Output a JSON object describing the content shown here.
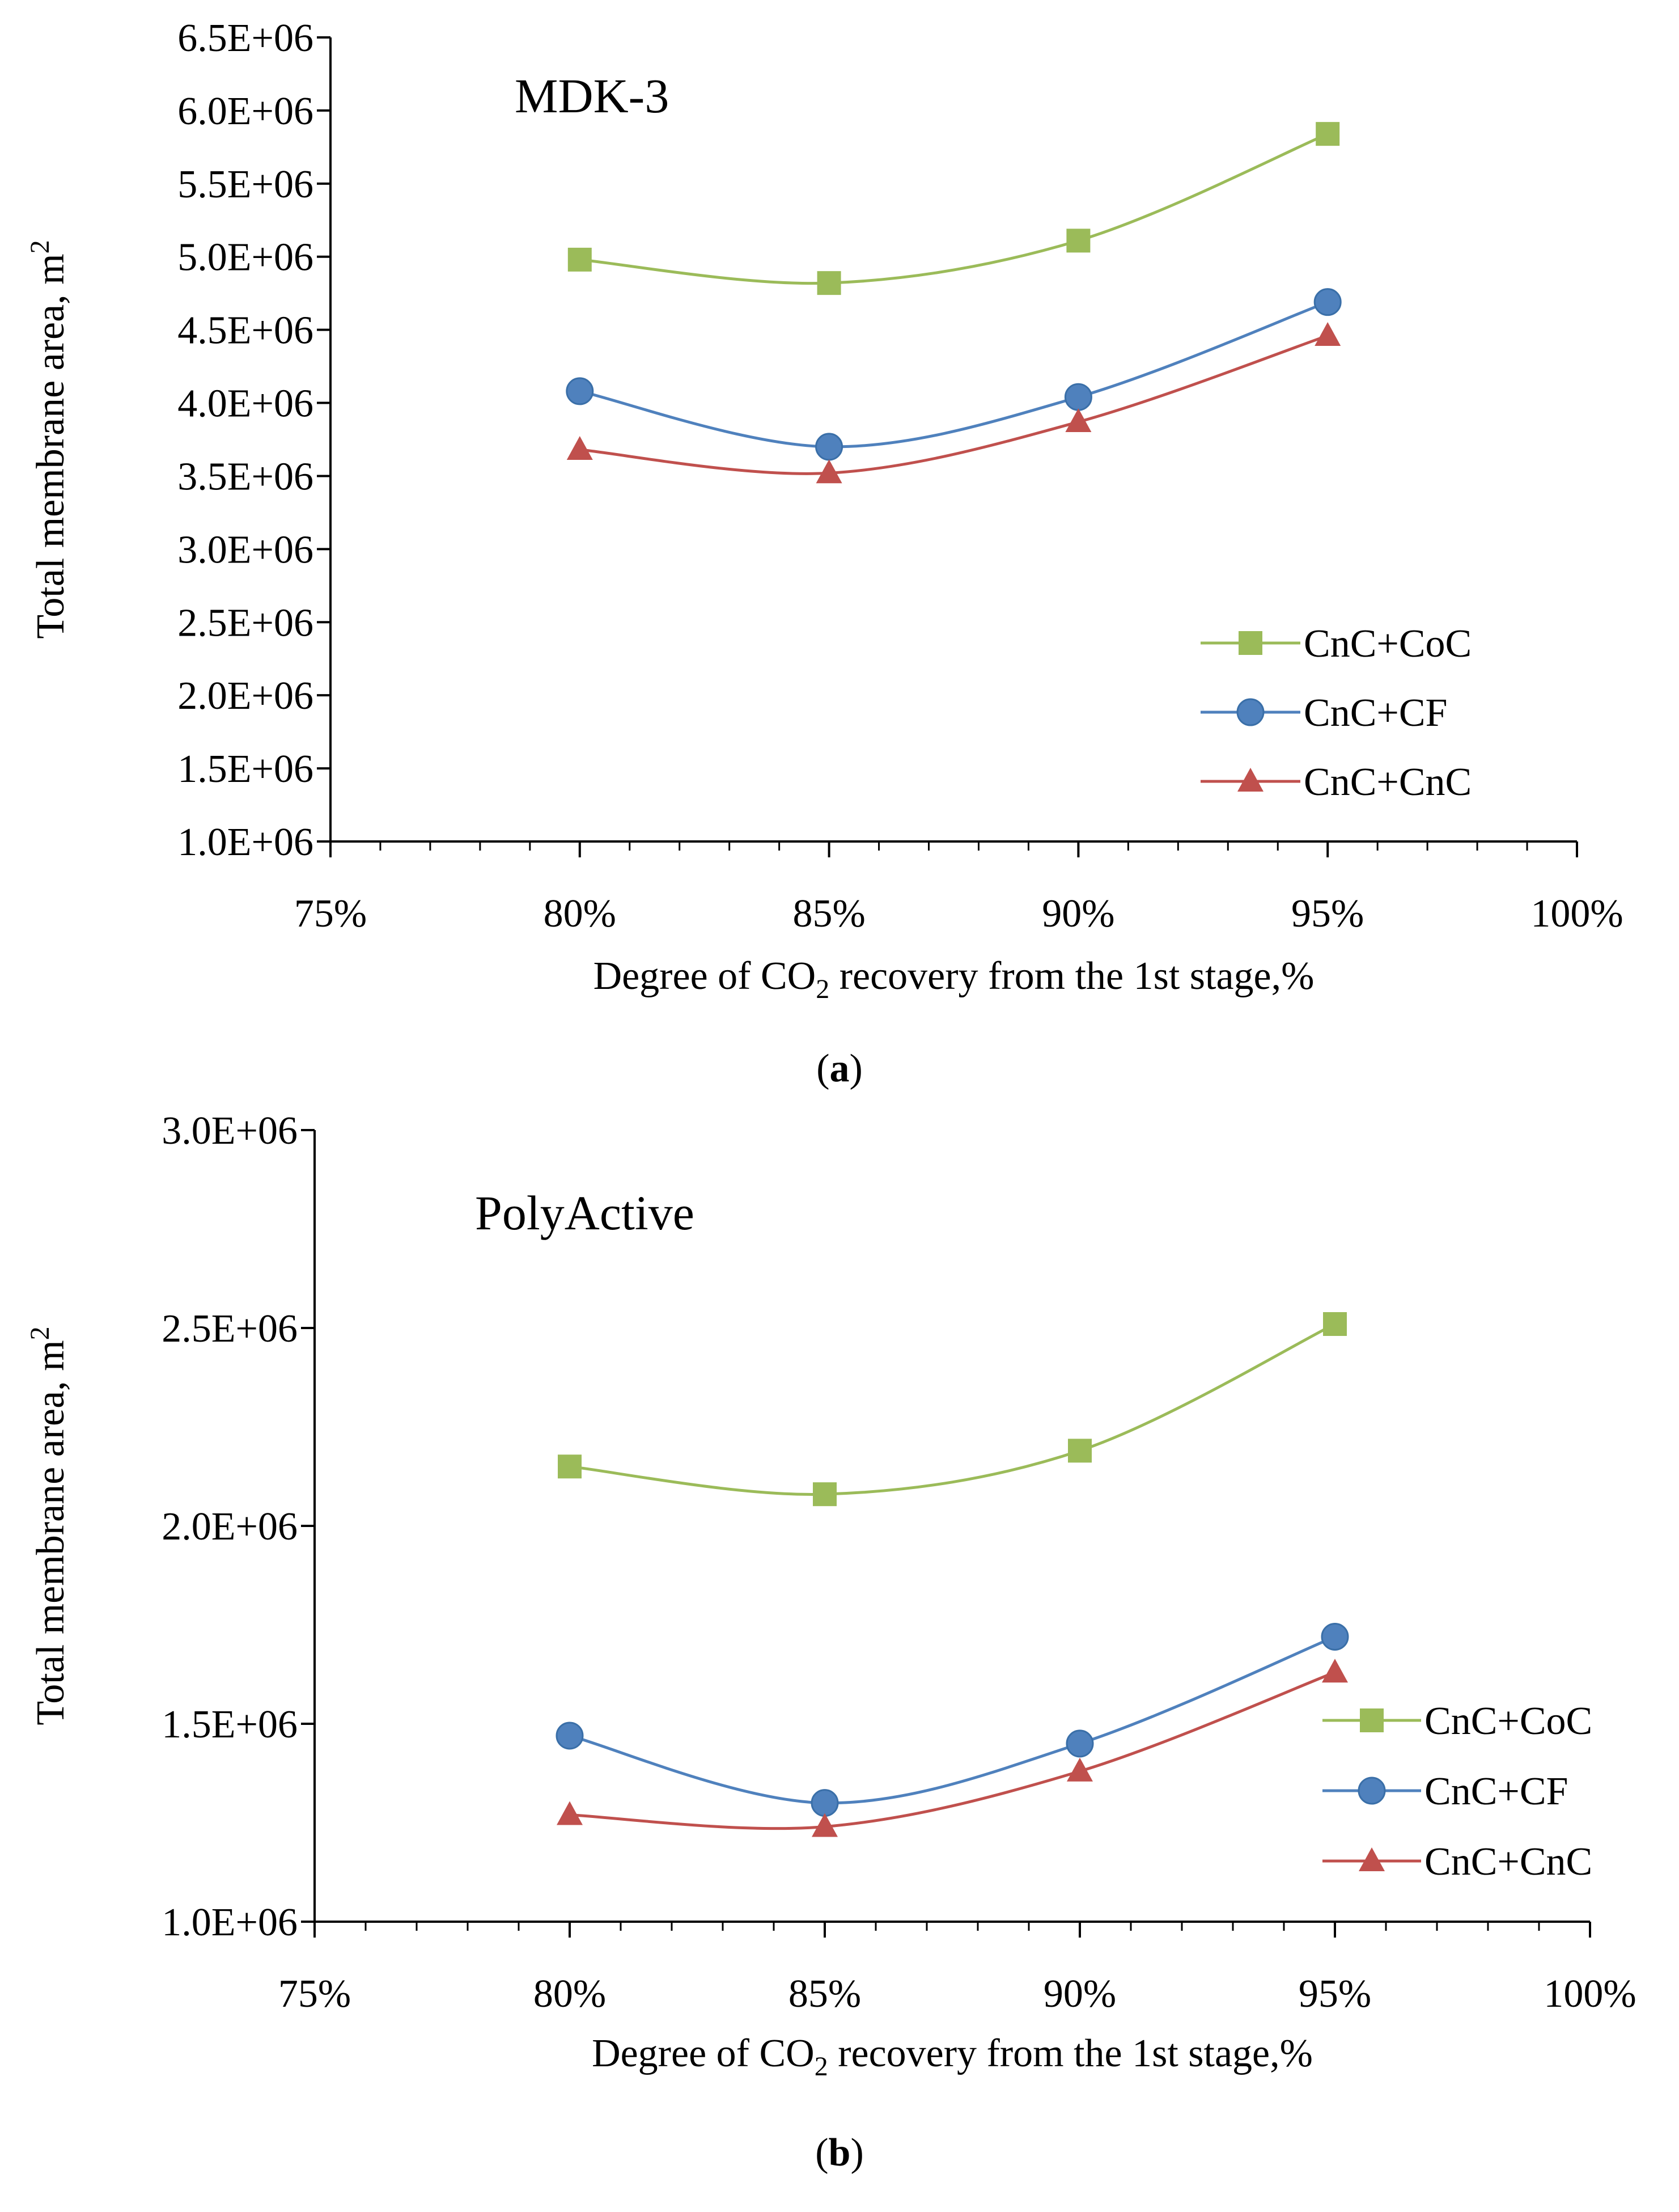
{
  "colors": {
    "CnC+CoC": "#9BBB59",
    "CnC+CF": "#4F81BD",
    "CnC+CnC": "#C0504D",
    "axis": "#000000"
  },
  "chart_data": [
    {
      "type": "line",
      "panel": "a",
      "title": "MDK-3",
      "caption_open": "(",
      "caption_letter": "a",
      "caption_close": ")",
      "xlabel_pre": "Degree of CO",
      "xlabel_sub": "2",
      "xlabel_post": "  recovery from the 1st stage,%",
      "ylabel_pre": "Total membrane area, m",
      "ylabel_sup": "2",
      "xlim": [
        0.75,
        1.0
      ],
      "ylim": [
        1000000,
        6500000
      ],
      "xticks": [
        0.75,
        0.8,
        0.85,
        0.9,
        0.95,
        1.0
      ],
      "xtick_labels": [
        "75%",
        "80%",
        "85%",
        "90%",
        "95%",
        "100%"
      ],
      "yticks": [
        1000000,
        1500000,
        2000000,
        2500000,
        3000000,
        3500000,
        4000000,
        4500000,
        5000000,
        5500000,
        6000000,
        6500000
      ],
      "ytick_labels": [
        "1.0E+06",
        "1.5E+06",
        "2.0E+06",
        "2.5E+06",
        "3.0E+06",
        "3.5E+06",
        "4.0E+06",
        "4.5E+06",
        "5.0E+06",
        "5.5E+06",
        "6.0E+06",
        "6.5E+06"
      ],
      "x": [
        0.8,
        0.85,
        0.9,
        0.95
      ],
      "series": [
        {
          "name": "CnC+CoC",
          "marker": "square",
          "values": [
            4980000,
            4820000,
            5110000,
            5840000
          ]
        },
        {
          "name": "CnC+CF",
          "marker": "circle",
          "values": [
            4080000,
            3700000,
            4040000,
            4690000
          ]
        },
        {
          "name": "CnC+CnC",
          "marker": "triangle",
          "values": [
            3680000,
            3520000,
            3870000,
            4460000
          ]
        }
      ],
      "legend_position": "bottom-right"
    },
    {
      "type": "line",
      "panel": "b",
      "title": "PolyActive",
      "caption_open": "(",
      "caption_letter": "b",
      "caption_close": ")",
      "xlabel_pre": "Degree of CO",
      "xlabel_sub": "2",
      "xlabel_post": "  recovery from the 1st stage,%",
      "ylabel_pre": "Total membrane area, m",
      "ylabel_sup": "2",
      "xlim": [
        0.75,
        1.0
      ],
      "ylim": [
        1000000,
        3000000
      ],
      "xticks": [
        0.75,
        0.8,
        0.85,
        0.9,
        0.95,
        1.0
      ],
      "xtick_labels": [
        "75%",
        "80%",
        "85%",
        "90%",
        "95%",
        "100%"
      ],
      "yticks": [
        1000000,
        1500000,
        2000000,
        2500000,
        3000000
      ],
      "ytick_labels": [
        "1.0E+06",
        "1.5E+06",
        "2.0E+06",
        "2.5E+06",
        "3.0E+06"
      ],
      "x": [
        0.8,
        0.85,
        0.9,
        0.95
      ],
      "series": [
        {
          "name": "CnC+CoC",
          "marker": "square",
          "values": [
            2150000,
            2080000,
            2190000,
            2510000
          ]
        },
        {
          "name": "CnC+CF",
          "marker": "circle",
          "values": [
            1470000,
            1300000,
            1450000,
            1720000
          ]
        },
        {
          "name": "CnC+CnC",
          "marker": "triangle",
          "values": [
            1270000,
            1240000,
            1380000,
            1630000
          ]
        }
      ],
      "legend_position": "bottom-right"
    }
  ]
}
